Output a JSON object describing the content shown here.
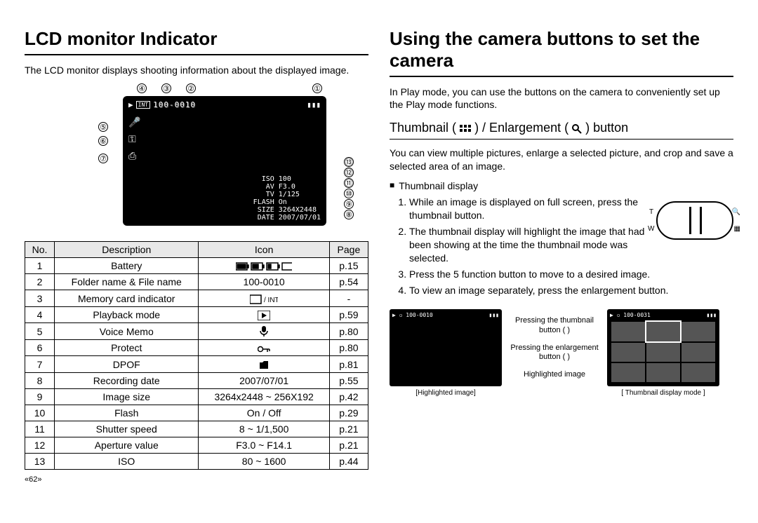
{
  "left": {
    "title": "LCD monitor Indicator",
    "intro": "The LCD monitor displays shooting information about the displayed image.",
    "lcd": {
      "file_label": "100-0010",
      "info_rows": [
        {
          "label": "ISO",
          "value": "100"
        },
        {
          "label": "AV",
          "value": "F3.0"
        },
        {
          "label": "TV",
          "value": "1/125"
        },
        {
          "label": "FLASH",
          "value": "On"
        },
        {
          "label": "SIZE",
          "value": "3264X2448"
        },
        {
          "label": "DATE",
          "value": "2007/07/01"
        }
      ]
    },
    "table": {
      "headers": {
        "no": "No.",
        "desc": "Description",
        "icon": "Icon",
        "page": "Page"
      },
      "rows": [
        {
          "no": "1",
          "desc": "Battery",
          "icon": "battery-levels",
          "page": "p.15"
        },
        {
          "no": "2",
          "desc": "Folder name & File name",
          "icon_text": "100-0010",
          "page": "p.54"
        },
        {
          "no": "3",
          "desc": "Memory card indicator",
          "icon": "card",
          "page": "-"
        },
        {
          "no": "4",
          "desc": "Playback mode",
          "icon": "play",
          "page": "p.59"
        },
        {
          "no": "5",
          "desc": "Voice Memo",
          "icon": "mic",
          "page": "p.80"
        },
        {
          "no": "6",
          "desc": "Protect",
          "icon": "key",
          "page": "p.80"
        },
        {
          "no": "7",
          "desc": "DPOF",
          "icon": "dpof",
          "page": "p.81"
        },
        {
          "no": "8",
          "desc": "Recording date",
          "icon_text": "2007/07/01",
          "page": "p.55"
        },
        {
          "no": "9",
          "desc": "Image size",
          "icon_text": "3264x2448 ~ 256X192",
          "page": "p.42"
        },
        {
          "no": "10",
          "desc": "Flash",
          "icon_text": "On / Off",
          "page": "p.29"
        },
        {
          "no": "11",
          "desc": "Shutter speed",
          "icon_text": "8 ~ 1/1,500",
          "page": "p.21"
        },
        {
          "no": "12",
          "desc": "Aperture value",
          "icon_text": "F3.0 ~ F14.1",
          "page": "p.21"
        },
        {
          "no": "13",
          "desc": "ISO",
          "icon_text": "80 ~ 1600",
          "page": "p.44"
        }
      ]
    },
    "page_number": "«62»"
  },
  "right": {
    "title": "Using the camera buttons to set the camera",
    "intro": "In Play mode, you can use the buttons on the camera to conveniently set up the Play mode functions.",
    "subhead_prefix": "Thumbnail ( ",
    "subhead_middle": " ) / Enlargement ( ",
    "subhead_suffix": " ) button",
    "para": "You can view multiple pictures, enlarge a selected picture, and crop and save a selected area of an image.",
    "bullet": "Thumbnail display",
    "steps": [
      "While an image is displayed on full screen, press the thumbnail  button.",
      "The thumbnail display will highlight the image that had been showing at the time the thumbnail mode was selected.",
      "Press the 5 function button to move to a desired image.",
      "To view an image separately, press the enlargement button."
    ],
    "zoom": {
      "t": "T",
      "w": "W"
    },
    "diag": {
      "left_file": "100-0010",
      "right_file": "100-0031",
      "mid_top": "Pressing the thumbnail button (       )",
      "mid_bottom": "Pressing the enlargement button (       )",
      "mid_caption": "Highlighted image",
      "left_caption": "[Highlighted image]",
      "right_caption": "[ Thumbnail display mode ]"
    }
  }
}
